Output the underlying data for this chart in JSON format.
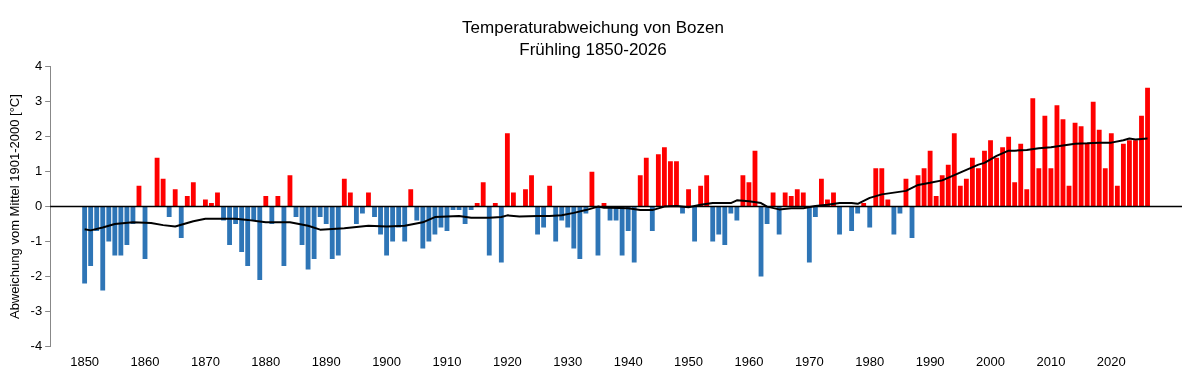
{
  "chart_data": {
    "type": "bar",
    "title": "Temperaturabweichung von Bozen",
    "subtitle": "Frühling 1850-2026",
    "ylabel": "Abweichung vom Mittel 1901-2000 [°C]",
    "xlim": [
      1849.5,
      2026.5
    ],
    "xticks": [
      1850,
      1860,
      1870,
      1880,
      1890,
      1900,
      1910,
      1920,
      1930,
      1940,
      1950,
      1960,
      1970,
      1980,
      1990,
      2000,
      2010,
      2020
    ],
    "ylim": [
      -4,
      4
    ],
    "yticks": [
      -4,
      -3,
      -2,
      -1,
      0,
      1,
      2,
      3,
      4
    ],
    "grid": false,
    "legend": false,
    "ref_lines": [
      {
        "axis": "y",
        "value": 0,
        "color": "#000000"
      }
    ],
    "series": [
      {
        "x": [
          1850,
          1851,
          1852,
          1853,
          1854,
          1855,
          1856,
          1857,
          1858,
          1859,
          1860,
          1861,
          1862,
          1863,
          1864,
          1865,
          1866,
          1867,
          1868,
          1869,
          1870,
          1871,
          1872,
          1873,
          1874,
          1875,
          1876,
          1877,
          1878,
          1879,
          1880,
          1881,
          1882,
          1883,
          1884,
          1885,
          1886,
          1887,
          1888,
          1889,
          1890,
          1891,
          1892,
          1893,
          1894,
          1895,
          1896,
          1897,
          1898,
          1899,
          1900,
          1901,
          1902,
          1903,
          1904,
          1905,
          1906,
          1907,
          1908,
          1909,
          1910,
          1911,
          1912,
          1913,
          1914,
          1915,
          1916,
          1917,
          1918,
          1919,
          1920,
          1921,
          1922,
          1923,
          1924,
          1925,
          1926,
          1927,
          1928,
          1929,
          1930,
          1931,
          1932,
          1933,
          1934,
          1935,
          1936,
          1937,
          1938,
          1939,
          1940,
          1941,
          1942,
          1943,
          1944,
          1945,
          1946,
          1947,
          1948,
          1949,
          1950,
          1951,
          1952,
          1953,
          1954,
          1955,
          1956,
          1957,
          1958,
          1959,
          1960,
          1961,
          1962,
          1963,
          1964,
          1965,
          1966,
          1967,
          1968,
          1969,
          1970,
          1971,
          1972,
          1973,
          1974,
          1975,
          1976,
          1977,
          1978,
          1979,
          1980,
          1981,
          1982,
          1983,
          1984,
          1985,
          1986,
          1987,
          1988,
          1989,
          1990,
          1991,
          1992,
          1993,
          1994,
          1995,
          1996,
          1997,
          1998,
          1999,
          2000,
          2001,
          2002,
          2003,
          2004,
          2005,
          2006,
          2007,
          2008,
          2009,
          2010,
          2011,
          2012,
          2013,
          2014,
          2015,
          2016,
          2017,
          2018,
          2019,
          2020,
          2021,
          2022,
          2023,
          2024,
          2025,
          2026
        ],
        "values": [
          -2.2,
          -1.7,
          -0.7,
          -2.4,
          -1.0,
          -1.4,
          -1.4,
          -1.1,
          -0.5,
          0.6,
          -1.5,
          0.0,
          1.4,
          0.8,
          -0.3,
          0.5,
          -0.9,
          0.3,
          0.7,
          0.0,
          0.2,
          0.1,
          0.4,
          -0.4,
          -1.1,
          -0.5,
          -1.3,
          -1.7,
          -0.4,
          -2.1,
          0.3,
          -0.5,
          0.3,
          -1.7,
          0.9,
          -0.3,
          -1.1,
          -1.8,
          -1.5,
          -0.3,
          -0.5,
          -1.5,
          -1.4,
          0.8,
          0.4,
          -0.5,
          -0.2,
          0.4,
          -0.3,
          -0.8,
          -1.4,
          -1.0,
          -0.6,
          -1.0,
          0.5,
          -0.4,
          -1.2,
          -1.0,
          -0.8,
          -0.6,
          -0.7,
          -0.1,
          -0.1,
          -0.5,
          -0.1,
          0.1,
          0.7,
          -1.4,
          0.1,
          -1.6,
          2.1,
          0.4,
          0.0,
          0.5,
          0.9,
          -0.8,
          -0.6,
          0.6,
          -1.0,
          -0.4,
          -0.6,
          -1.2,
          -1.5,
          -0.2,
          1.0,
          -1.4,
          0.1,
          -0.4,
          -0.4,
          -1.4,
          -0.7,
          -1.6,
          0.9,
          1.4,
          -0.7,
          1.5,
          1.7,
          1.3,
          1.3,
          -0.2,
          0.5,
          -1.0,
          0.6,
          0.9,
          -1.0,
          -0.8,
          -1.1,
          -0.2,
          -0.4,
          0.9,
          0.7,
          1.6,
          -2.0,
          -0.5,
          0.4,
          -0.8,
          0.4,
          0.3,
          0.5,
          0.4,
          -1.6,
          -0.3,
          0.8,
          0.2,
          0.4,
          -0.8,
          0.0,
          -0.7,
          -0.2,
          0.1,
          -0.6,
          1.1,
          1.1,
          0.2,
          -0.8,
          -0.2,
          0.8,
          -0.9,
          0.9,
          1.1,
          1.6,
          0.3,
          0.9,
          1.2,
          2.1,
          0.6,
          0.8,
          1.4,
          1.1,
          1.6,
          1.9,
          1.4,
          1.7,
          2.0,
          0.7,
          1.8,
          0.5,
          3.1,
          1.1,
          2.6,
          1.1,
          2.9,
          2.5,
          0.6,
          2.4,
          2.3,
          1.8,
          3.0,
          2.2,
          1.1,
          2.1,
          0.6,
          1.8,
          1.9,
          1.9,
          2.6,
          3.4
        ],
        "colors": [
          "#2e75b6",
          "#2e75b6",
          "#2e75b6",
          "#2e75b6",
          "#2e75b6",
          "#2e75b6",
          "#2e75b6",
          "#2e75b6",
          "#2e75b6",
          "#ff0000",
          "#2e75b6",
          "#2e75b6",
          "#ff0000",
          "#ff0000",
          "#2e75b6",
          "#ff0000",
          "#2e75b6",
          "#ff0000",
          "#ff0000",
          "#2e75b6",
          "#ff0000",
          "#ff0000",
          "#ff0000",
          "#2e75b6",
          "#2e75b6",
          "#2e75b6",
          "#2e75b6",
          "#2e75b6",
          "#2e75b6",
          "#2e75b6",
          "#ff0000",
          "#2e75b6",
          "#ff0000",
          "#2e75b6",
          "#ff0000",
          "#2e75b6",
          "#2e75b6",
          "#2e75b6",
          "#2e75b6",
          "#2e75b6",
          "#2e75b6",
          "#2e75b6",
          "#2e75b6",
          "#ff0000",
          "#ff0000",
          "#2e75b6",
          "#2e75b6",
          "#ff0000",
          "#2e75b6",
          "#2e75b6",
          "#2e75b6",
          "#2e75b6",
          "#2e75b6",
          "#2e75b6",
          "#ff0000",
          "#2e75b6",
          "#2e75b6",
          "#2e75b6",
          "#2e75b6",
          "#2e75b6",
          "#2e75b6",
          "#2e75b6",
          "#2e75b6",
          "#2e75b6",
          "#2e75b6",
          "#ff0000",
          "#ff0000",
          "#2e75b6",
          "#ff0000",
          "#2e75b6",
          "#ff0000",
          "#ff0000",
          "#2e75b6",
          "#ff0000",
          "#ff0000",
          "#2e75b6",
          "#2e75b6",
          "#ff0000",
          "#2e75b6",
          "#2e75b6",
          "#2e75b6",
          "#2e75b6",
          "#2e75b6",
          "#2e75b6",
          "#ff0000",
          "#2e75b6",
          "#ff0000",
          "#2e75b6",
          "#2e75b6",
          "#2e75b6",
          "#2e75b6",
          "#2e75b6",
          "#ff0000",
          "#ff0000",
          "#2e75b6",
          "#ff0000",
          "#ff0000",
          "#ff0000",
          "#ff0000",
          "#2e75b6",
          "#ff0000",
          "#2e75b6",
          "#ff0000",
          "#ff0000",
          "#2e75b6",
          "#2e75b6",
          "#2e75b6",
          "#2e75b6",
          "#2e75b6",
          "#ff0000",
          "#ff0000",
          "#ff0000",
          "#2e75b6",
          "#2e75b6",
          "#ff0000",
          "#2e75b6",
          "#ff0000",
          "#ff0000",
          "#ff0000",
          "#ff0000",
          "#2e75b6",
          "#2e75b6",
          "#ff0000",
          "#ff0000",
          "#ff0000",
          "#2e75b6",
          "#2e75b6",
          "#2e75b6",
          "#2e75b6",
          "#ff0000",
          "#2e75b6",
          "#ff0000",
          "#ff0000",
          "#ff0000",
          "#2e75b6",
          "#2e75b6",
          "#ff0000",
          "#2e75b6",
          "#ff0000",
          "#ff0000",
          "#ff0000",
          "#ff0000",
          "#ff0000",
          "#ff0000",
          "#ff0000",
          "#ff0000",
          "#ff0000",
          "#ff0000",
          "#ff0000",
          "#ff0000",
          "#ff0000",
          "#ff0000",
          "#ff0000",
          "#ff0000",
          "#ff0000",
          "#ff0000",
          "#ff0000",
          "#ff0000",
          "#ff0000",
          "#ff0000",
          "#ff0000",
          "#ff0000",
          "#ff0000",
          "#ff0000",
          "#ff0000",
          "#ff0000",
          "#ff0000",
          "#ff0000",
          "#ff0000",
          "#ff0000",
          "#ff0000",
          "#ff0000",
          "#ff0000",
          "#ff0000",
          "#ff0000",
          "#ff0000",
          "#ff0000"
        ]
      },
      {
        "type": "line",
        "color": "#000000",
        "x": [
          1850,
          1851,
          1853,
          1855,
          1858,
          1861,
          1863,
          1865,
          1867,
          1868,
          1870,
          1875,
          1877,
          1880,
          1884,
          1887,
          1889,
          1893,
          1897,
          1900,
          1903,
          1906,
          1908,
          1910,
          1912,
          1914,
          1917,
          1919,
          1920,
          1922,
          1925,
          1927,
          1929,
          1931,
          1933,
          1934,
          1935,
          1936,
          1937,
          1940,
          1942,
          1944,
          1946,
          1948,
          1950,
          1952,
          1954,
          1957,
          1958,
          1960,
          1962,
          1963,
          1965,
          1967,
          1969,
          1971,
          1973,
          1975,
          1977,
          1978,
          1980,
          1982,
          1984,
          1986,
          1988,
          1990,
          1992,
          1994,
          1996,
          1998,
          1999,
          2001,
          2003,
          2004,
          2006,
          2008,
          2010,
          2012,
          2014,
          2016,
          2018,
          2020,
          2022,
          2023,
          2024,
          2026
        ],
        "values": [
          -0.65,
          -0.68,
          -0.6,
          -0.5,
          -0.45,
          -0.47,
          -0.53,
          -0.57,
          -0.47,
          -0.42,
          -0.35,
          -0.35,
          -0.38,
          -0.45,
          -0.45,
          -0.55,
          -0.66,
          -0.62,
          -0.55,
          -0.57,
          -0.55,
          -0.45,
          -0.3,
          -0.28,
          -0.27,
          -0.32,
          -0.32,
          -0.3,
          -0.25,
          -0.28,
          -0.27,
          -0.27,
          -0.25,
          -0.18,
          -0.1,
          -0.05,
          0.0,
          -0.03,
          -0.03,
          -0.05,
          -0.1,
          -0.1,
          0.0,
          0.02,
          -0.02,
          0.05,
          0.1,
          0.1,
          0.18,
          0.15,
          0.1,
          0.0,
          -0.08,
          -0.05,
          -0.05,
          0.02,
          0.05,
          0.1,
          0.1,
          0.08,
          0.25,
          0.35,
          0.4,
          0.45,
          0.62,
          0.68,
          0.75,
          0.9,
          1.05,
          1.2,
          1.25,
          1.45,
          1.6,
          1.6,
          1.62,
          1.67,
          1.7,
          1.75,
          1.8,
          1.81,
          1.83,
          1.83,
          1.9,
          1.95,
          1.92,
          1.95
        ]
      }
    ]
  }
}
